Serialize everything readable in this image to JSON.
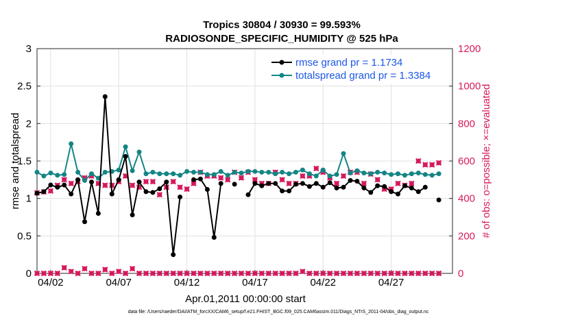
{
  "chart_data": {
    "type": "line",
    "title": "Tropics 30804 / 30930 = 99.593%",
    "subtitle": "RADIOSONDE_SPECIFIC_HUMIDITY @ 525 hPa",
    "xlabel": "Apr.01,2011 00:00:00 start",
    "ylabel": "rmse and totalspread",
    "ylabel_right": "# of obs: o=possible; ×=evaluated",
    "ylim": [
      0,
      3
    ],
    "ylim_right": [
      0,
      1200
    ],
    "x_range_days": [
      1,
      31.5
    ],
    "grid": true,
    "x_ticks": [
      {
        "day": 2,
        "label": "04/02"
      },
      {
        "day": 7,
        "label": "04/07"
      },
      {
        "day": 12,
        "label": "04/12"
      },
      {
        "day": 17,
        "label": "04/17"
      },
      {
        "day": 22,
        "label": "04/22"
      },
      {
        "day": 27,
        "label": "04/27"
      }
    ],
    "y_ticks": [
      "0",
      "0.5",
      "1",
      "1.5",
      "2",
      "2.5",
      "3"
    ],
    "y_ticks_right": [
      "0",
      "200",
      "400",
      "600",
      "800",
      "1000",
      "1200"
    ],
    "colors": {
      "rmse": "#000000",
      "spread": "#138585",
      "obs": "#d6195d",
      "grid": "#e0e0e0",
      "legend_text": "#1a57e8"
    },
    "legend": [
      {
        "label": "rmse grand pr = 1.1734",
        "series": "rmse"
      },
      {
        "label": "totalspread grand pr = 1.3384",
        "series": "spread"
      }
    ],
    "legend_position": "top-right",
    "series_start_day": 1,
    "series_step_days": 0.5,
    "rmse": [
      1.07,
      1.09,
      1.18,
      1.15,
      1.18,
      1.06,
      1.25,
      0.69,
      1.22,
      0.8,
      2.36,
      1.06,
      1.25,
      1.56,
      0.78,
      1.22,
      1.09,
      1.08,
      1.13,
      1.22,
      0.25,
      1.02,
      null,
      1.25,
      1.26,
      1.12,
      0.48,
      1.2,
      null,
      1.19,
      null,
      1.05,
      1.2,
      1.17,
      1.2,
      1.2,
      1.1,
      1.1,
      1.19,
      1.2,
      1.16,
      1.2,
      1.15,
      1.21,
      1.14,
      1.15,
      1.24,
      1.23,
      1.14,
      1.08,
      1.17,
      1.16,
      1.09,
      1.06,
      1.17,
      1.14,
      1.09,
      1.15,
      null,
      0.98
    ],
    "spread": [
      1.35,
      1.3,
      1.34,
      1.31,
      1.32,
      1.73,
      1.35,
      1.24,
      1.33,
      1.27,
      1.35,
      1.36,
      1.38,
      1.69,
      1.37,
      1.62,
      1.33,
      1.35,
      1.33,
      1.33,
      1.33,
      1.31,
      1.36,
      1.35,
      1.35,
      1.32,
      1.32,
      1.36,
      1.31,
      1.35,
      1.34,
      1.36,
      1.36,
      1.35,
      1.35,
      1.33,
      1.35,
      1.33,
      1.35,
      1.38,
      1.33,
      1.3,
      1.38,
      1.3,
      1.32,
      1.6,
      1.34,
      1.37,
      1.34,
      1.33,
      1.35,
      1.34,
      1.32,
      1.33,
      1.31,
      1.33,
      1.34,
      1.32,
      1.31,
      1.33
    ],
    "obs_possible": [
      430,
      435,
      440,
      470,
      500,
      480,
      490,
      510,
      520,
      480,
      470,
      470,
      490,
      520,
      470,
      460,
      490,
      490,
      420,
      460,
      490,
      460,
      450,
      480,
      540,
      520,
      520,
      510,
      500,
      540,
      510,
      540,
      500,
      480,
      480,
      540,
      500,
      480,
      480,
      520,
      520,
      560,
      540,
      510,
      480,
      520,
      540,
      540,
      480,
      530,
      500,
      450,
      450,
      480,
      470,
      480,
      600,
      580,
      580,
      590
    ],
    "obs_evaluated": [
      0,
      0,
      0,
      0,
      30,
      10,
      0,
      25,
      0,
      0,
      20,
      0,
      10,
      0,
      25,
      0,
      0,
      0,
      0,
      0,
      0,
      0,
      0,
      0,
      0,
      0,
      0,
      0,
      0,
      0,
      0,
      0,
      0,
      0,
      0,
      0,
      0,
      0,
      0,
      10,
      0,
      0,
      0,
      0,
      0,
      0,
      0,
      0,
      0,
      0,
      0,
      0,
      0,
      0,
      0,
      0,
      0,
      0,
      0,
      0
    ]
  },
  "footer": "data file: /Users/raeder/DAI/ATM_forcXX/CAM6_setup/f.e21.FHIST_BGC.f09_025.CAM6assim.011/Diags_NTrS_2011-04/obs_diag_output.nc"
}
